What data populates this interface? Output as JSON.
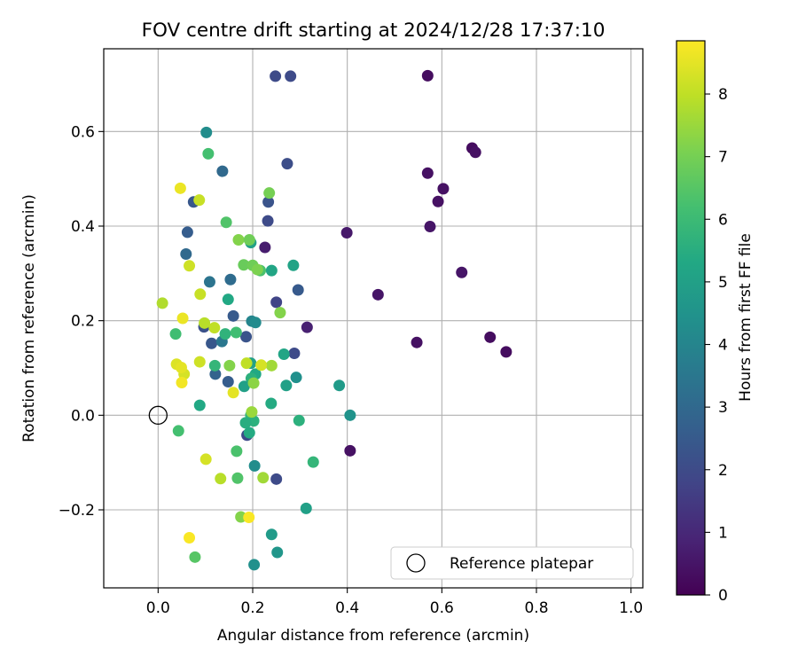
{
  "chart_data": {
    "type": "scatter",
    "title": "FOV centre drift starting at 2024/12/28 17:37:10",
    "xlabel": "Angular distance from reference (arcmin)",
    "ylabel": "Rotation from reference (arcmin)",
    "xlim": [
      -0.115,
      1.025
    ],
    "ylim": [
      -0.365,
      0.775
    ],
    "xticks": [
      0.0,
      0.2,
      0.4,
      0.6,
      0.8,
      1.0
    ],
    "xtick_labels": [
      "0.0",
      "0.2",
      "0.4",
      "0.6",
      "0.8",
      "1.0"
    ],
    "yticks": [
      -0.2,
      0.0,
      0.2,
      0.4,
      0.6
    ],
    "ytick_labels": [
      "−0.2",
      "0.0",
      "0.2",
      "0.4",
      "0.6"
    ],
    "grid": true,
    "legend": {
      "placement": "lower-right",
      "entries": [
        "Reference platepar"
      ]
    },
    "reference_point": {
      "name": "Reference platepar",
      "x": 0.0,
      "y": 0.0
    },
    "colorbar": {
      "label": "Hours from first FF file",
      "min": 0,
      "max": 8.85,
      "ticks": [
        0,
        1,
        2,
        3,
        4,
        5,
        6,
        7,
        8
      ],
      "tick_labels": [
        "0",
        "1",
        "2",
        "3",
        "4",
        "5",
        "6",
        "7",
        "8"
      ],
      "colormap": "viridis"
    },
    "points": [
      {
        "x": 0.57,
        "y": 0.718,
        "c": 0.3
      },
      {
        "x": 0.664,
        "y": 0.565,
        "c": 0.3
      },
      {
        "x": 0.671,
        "y": 0.556,
        "c": 0.4
      },
      {
        "x": 0.57,
        "y": 0.512,
        "c": 0.4
      },
      {
        "x": 0.603,
        "y": 0.479,
        "c": 0.4
      },
      {
        "x": 0.592,
        "y": 0.452,
        "c": 0.4
      },
      {
        "x": 0.575,
        "y": 0.399,
        "c": 0.5
      },
      {
        "x": 0.642,
        "y": 0.302,
        "c": 0.5
      },
      {
        "x": 0.465,
        "y": 0.255,
        "c": 0.5
      },
      {
        "x": 0.702,
        "y": 0.165,
        "c": 0.3
      },
      {
        "x": 0.547,
        "y": 0.154,
        "c": 0.4
      },
      {
        "x": 0.736,
        "y": 0.134,
        "c": 0.3
      },
      {
        "x": 0.399,
        "y": 0.386,
        "c": 0.6
      },
      {
        "x": 0.406,
        "y": -0.075,
        "c": 0.4
      },
      {
        "x": 0.226,
        "y": 0.355,
        "c": 0.7
      },
      {
        "x": 0.315,
        "y": 0.186,
        "c": 0.8
      },
      {
        "x": 0.248,
        "y": 0.717,
        "c": 2.0
      },
      {
        "x": 0.28,
        "y": 0.717,
        "c": 2.0
      },
      {
        "x": 0.273,
        "y": 0.532,
        "c": 2.1
      },
      {
        "x": 0.233,
        "y": 0.451,
        "c": 2.3
      },
      {
        "x": 0.232,
        "y": 0.411,
        "c": 2.0
      },
      {
        "x": 0.25,
        "y": 0.239,
        "c": 1.8
      },
      {
        "x": 0.296,
        "y": 0.265,
        "c": 2.5
      },
      {
        "x": 0.288,
        "y": 0.131,
        "c": 2.0
      },
      {
        "x": 0.25,
        "y": -0.135,
        "c": 2.0
      },
      {
        "x": 0.075,
        "y": 0.451,
        "c": 2.4
      },
      {
        "x": 0.062,
        "y": 0.387,
        "c": 2.6
      },
      {
        "x": 0.059,
        "y": 0.341,
        "c": 3.0
      },
      {
        "x": 0.136,
        "y": 0.516,
        "c": 3.0
      },
      {
        "x": 0.109,
        "y": 0.282,
        "c": 3.4
      },
      {
        "x": 0.153,
        "y": 0.287,
        "c": 3.1
      },
      {
        "x": 0.159,
        "y": 0.21,
        "c": 2.5
      },
      {
        "x": 0.097,
        "y": 0.187,
        "c": 2.2
      },
      {
        "x": 0.113,
        "y": 0.152,
        "c": 2.4
      },
      {
        "x": 0.186,
        "y": 0.166,
        "c": 2.3
      },
      {
        "x": 0.121,
        "y": 0.087,
        "c": 2.8
      },
      {
        "x": 0.148,
        "y": 0.071,
        "c": 2.6
      },
      {
        "x": 0.188,
        "y": -0.042,
        "c": 2.0
      },
      {
        "x": 0.102,
        "y": 0.598,
        "c": 4.3
      },
      {
        "x": 0.135,
        "y": 0.156,
        "c": 3.5
      },
      {
        "x": 0.198,
        "y": 0.199,
        "c": 4.0
      },
      {
        "x": 0.206,
        "y": 0.196,
        "c": 4.2
      },
      {
        "x": 0.204,
        "y": -0.107,
        "c": 4.3
      },
      {
        "x": 0.203,
        "y": -0.316,
        "c": 4.4
      },
      {
        "x": 0.252,
        "y": -0.29,
        "c": 4.6
      },
      {
        "x": 0.292,
        "y": 0.08,
        "c": 4.4
      },
      {
        "x": 0.406,
        "y": 0.0,
        "c": 4.5
      },
      {
        "x": 0.383,
        "y": 0.063,
        "c": 4.8
      },
      {
        "x": 0.313,
        "y": -0.197,
        "c": 5.0
      },
      {
        "x": 0.24,
        "y": -0.252,
        "c": 4.8
      },
      {
        "x": 0.271,
        "y": 0.063,
        "c": 5.0
      },
      {
        "x": 0.286,
        "y": 0.317,
        "c": 5.1
      },
      {
        "x": 0.24,
        "y": 0.306,
        "c": 5.2
      },
      {
        "x": 0.196,
        "y": 0.365,
        "c": 5.0
      },
      {
        "x": 0.266,
        "y": 0.129,
        "c": 5.2
      },
      {
        "x": 0.148,
        "y": 0.245,
        "c": 5.3
      },
      {
        "x": 0.196,
        "y": 0.11,
        "c": 5.0
      },
      {
        "x": 0.206,
        "y": 0.087,
        "c": 5.3
      },
      {
        "x": 0.197,
        "y": 0.078,
        "c": 5.6
      },
      {
        "x": 0.182,
        "y": 0.061,
        "c": 5.0
      },
      {
        "x": 0.239,
        "y": 0.025,
        "c": 5.4
      },
      {
        "x": 0.196,
        "y": 0.0,
        "c": 5.8
      },
      {
        "x": 0.202,
        "y": -0.012,
        "c": 5.6
      },
      {
        "x": 0.185,
        "y": -0.016,
        "c": 5.5
      },
      {
        "x": 0.193,
        "y": -0.037,
        "c": 5.4
      },
      {
        "x": 0.298,
        "y": -0.011,
        "c": 5.6
      },
      {
        "x": 0.328,
        "y": -0.099,
        "c": 5.8
      },
      {
        "x": 0.088,
        "y": 0.021,
        "c": 5.3
      },
      {
        "x": 0.12,
        "y": 0.105,
        "c": 5.8
      },
      {
        "x": 0.142,
        "y": 0.172,
        "c": 5.7
      },
      {
        "x": 0.165,
        "y": 0.175,
        "c": 6.1
      },
      {
        "x": 0.037,
        "y": 0.172,
        "c": 6.1
      },
      {
        "x": 0.043,
        "y": -0.033,
        "c": 6.2
      },
      {
        "x": 0.216,
        "y": 0.306,
        "c": 6.3
      },
      {
        "x": 0.106,
        "y": 0.553,
        "c": 6.2
      },
      {
        "x": 0.144,
        "y": 0.408,
        "c": 6.4
      },
      {
        "x": 0.166,
        "y": -0.076,
        "c": 6.3
      },
      {
        "x": 0.168,
        "y": -0.133,
        "c": 6.4
      },
      {
        "x": 0.078,
        "y": -0.3,
        "c": 6.5
      },
      {
        "x": 0.235,
        "y": 0.47,
        "c": 7.0
      },
      {
        "x": 0.17,
        "y": 0.371,
        "c": 7.2
      },
      {
        "x": 0.193,
        "y": 0.371,
        "c": 6.9
      },
      {
        "x": 0.181,
        "y": 0.318,
        "c": 6.8
      },
      {
        "x": 0.2,
        "y": 0.317,
        "c": 6.9
      },
      {
        "x": 0.21,
        "y": 0.308,
        "c": 7.1
      },
      {
        "x": 0.258,
        "y": 0.217,
        "c": 7.2
      },
      {
        "x": 0.202,
        "y": 0.068,
        "c": 7.3
      },
      {
        "x": 0.198,
        "y": 0.007,
        "c": 7.5
      },
      {
        "x": 0.151,
        "y": 0.105,
        "c": 7.2
      },
      {
        "x": 0.175,
        "y": -0.215,
        "c": 7.2
      },
      {
        "x": 0.24,
        "y": 0.105,
        "c": 7.6
      },
      {
        "x": 0.222,
        "y": -0.132,
        "c": 7.6
      },
      {
        "x": 0.132,
        "y": -0.134,
        "c": 7.9
      },
      {
        "x": 0.098,
        "y": 0.195,
        "c": 7.9
      },
      {
        "x": 0.119,
        "y": 0.185,
        "c": 8.0
      },
      {
        "x": 0.009,
        "y": 0.237,
        "c": 7.8
      },
      {
        "x": 0.089,
        "y": 0.256,
        "c": 8.1
      },
      {
        "x": 0.066,
        "y": 0.316,
        "c": 8.2
      },
      {
        "x": 0.087,
        "y": 0.455,
        "c": 8.1
      },
      {
        "x": 0.088,
        "y": 0.113,
        "c": 8.2
      },
      {
        "x": 0.187,
        "y": 0.11,
        "c": 8.0
      },
      {
        "x": 0.218,
        "y": 0.106,
        "c": 8.3
      },
      {
        "x": 0.039,
        "y": 0.108,
        "c": 8.4
      },
      {
        "x": 0.055,
        "y": 0.087,
        "c": 8.3
      },
      {
        "x": 0.049,
        "y": 0.101,
        "c": 8.5
      },
      {
        "x": 0.101,
        "y": -0.093,
        "c": 8.3
      },
      {
        "x": 0.047,
        "y": 0.48,
        "c": 8.6
      },
      {
        "x": 0.052,
        "y": 0.205,
        "c": 8.6
      },
      {
        "x": 0.05,
        "y": 0.069,
        "c": 8.7
      },
      {
        "x": 0.159,
        "y": 0.048,
        "c": 8.5
      },
      {
        "x": 0.192,
        "y": -0.216,
        "c": 8.8
      },
      {
        "x": 0.066,
        "y": -0.259,
        "c": 8.8
      }
    ]
  }
}
